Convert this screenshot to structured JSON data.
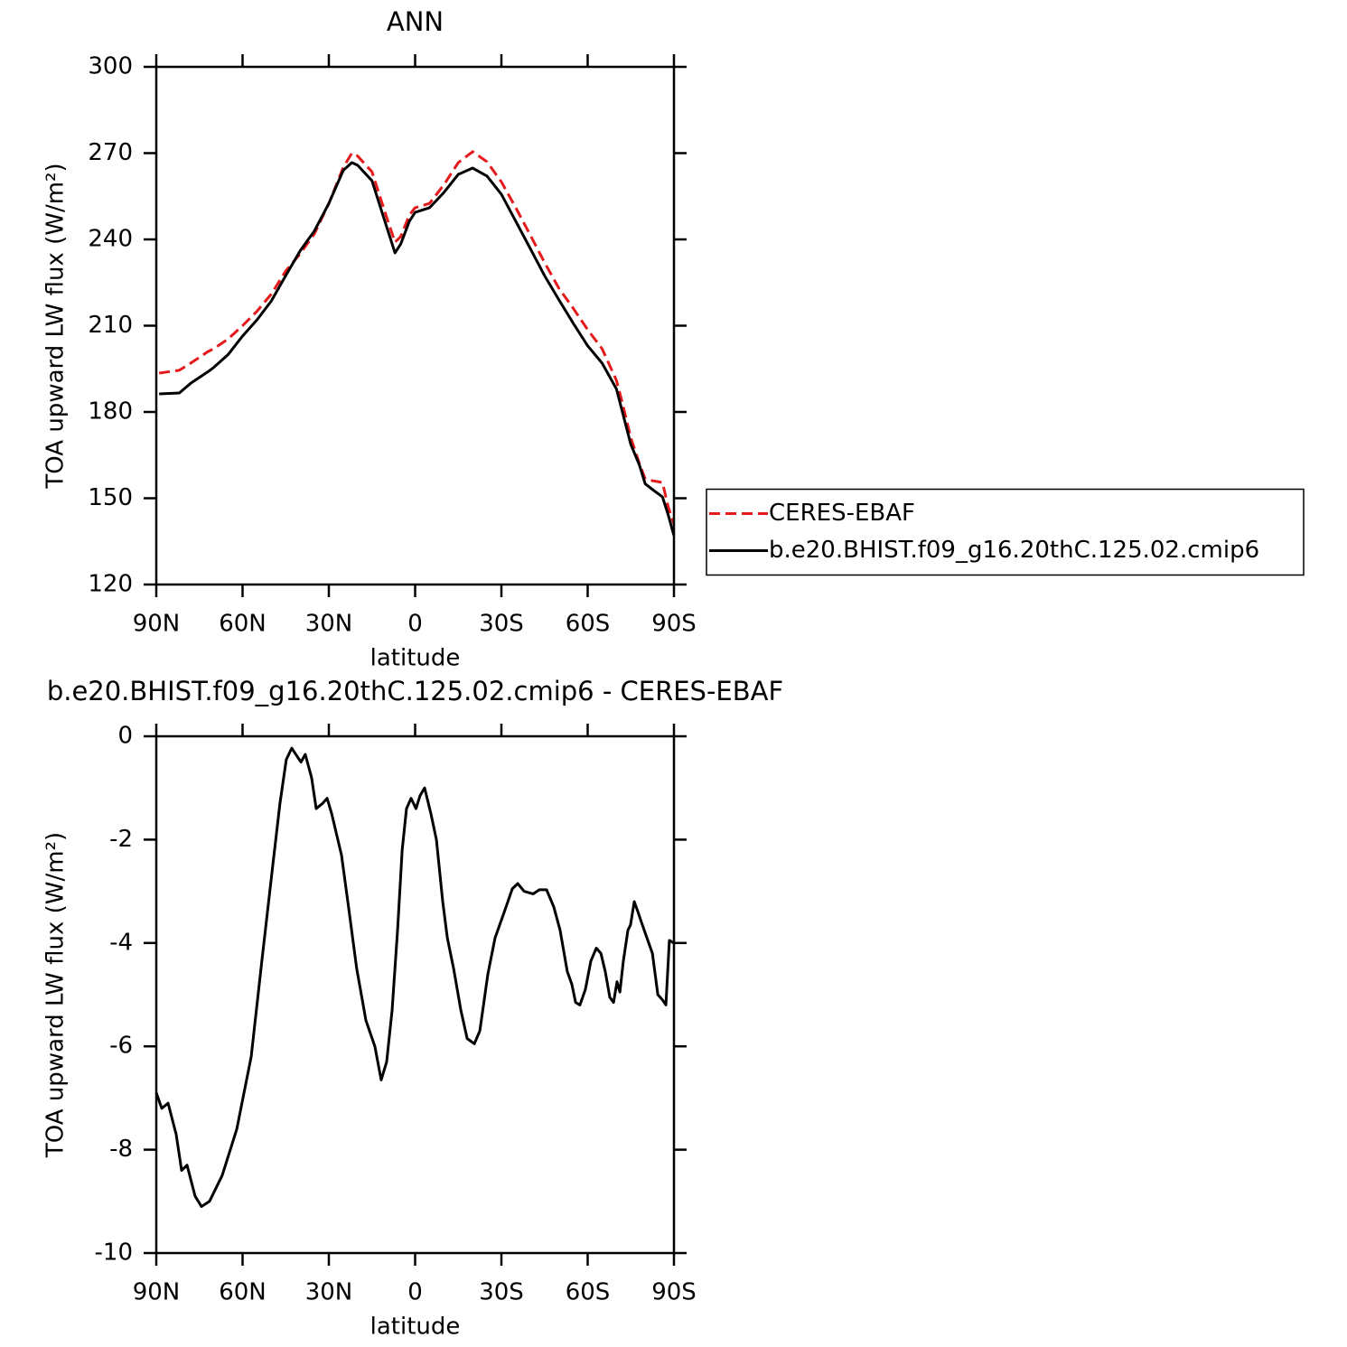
{
  "chart_data": [
    {
      "type": "line",
      "title": "ANN",
      "xlabel": "latitude",
      "ylabel": "TOA upward LW flux (W/m²)",
      "xlim": [
        90,
        -90
      ],
      "ylim": [
        120,
        300
      ],
      "xticks": [
        {
          "value": 90,
          "label": "90N"
        },
        {
          "value": 60,
          "label": "60N"
        },
        {
          "value": 30,
          "label": "30N"
        },
        0,
        {
          "value": -30,
          "label": "30S"
        },
        {
          "value": -60,
          "label": "60S"
        },
        {
          "value": -90,
          "label": "90S"
        }
      ],
      "yticks": [
        120,
        150,
        180,
        210,
        240,
        270,
        300
      ],
      "legend": "right",
      "x": [
        89,
        82,
        78,
        75,
        72,
        70,
        65,
        60,
        55,
        50,
        45,
        40,
        35,
        30,
        25,
        22,
        20,
        15,
        10,
        7,
        5,
        2,
        0,
        -5,
        -10,
        -15,
        -20,
        -25,
        -30,
        -35,
        -40,
        -45,
        -50,
        -55,
        -60,
        -65,
        -70,
        -72,
        -75,
        -78,
        -80,
        -83,
        -86,
        -88,
        -90
      ],
      "series": [
        {
          "name": "CERES-EBAF",
          "color": "#e41a1c",
          "dash": true,
          "values": [
            193.5,
            194.5,
            197,
            199,
            201,
            202,
            205.4,
            210,
            215,
            221,
            229,
            235,
            242,
            252.5,
            265,
            270,
            269,
            263.5,
            248,
            239,
            241,
            248.5,
            251,
            252.5,
            259,
            266.7,
            270.5,
            267,
            260,
            251,
            241.6,
            232,
            223,
            216,
            208.6,
            202,
            191,
            183.4,
            171,
            162,
            156.7,
            156,
            155.5,
            147,
            141
          ]
        },
        {
          "name": "b.e20.BHIST.f09_g16.20thC.125.02.cmip6",
          "color": "#000000",
          "dash": false,
          "values": [
            186.3,
            186.6,
            190,
            192,
            194,
            195.5,
            200,
            206.4,
            212,
            218.6,
            227.4,
            236,
            243,
            252.5,
            264,
            266.7,
            265.8,
            260.4,
            244.7,
            235.3,
            238.4,
            246.3,
            249.4,
            251,
            256.3,
            262.6,
            264.8,
            262,
            255.7,
            246.3,
            236.9,
            227.4,
            219,
            210.8,
            203,
            197,
            188,
            180.3,
            168.7,
            161.5,
            155,
            152.7,
            150.5,
            144.2,
            137
          ]
        }
      ]
    },
    {
      "type": "line",
      "title": "b.e20.BHIST.f09_g16.20thC.125.02.cmip6 - CERES-EBAF",
      "xlabel": "latitude",
      "ylabel": "TOA upward LW flux (W/m²)",
      "xlim": [
        90,
        -90
      ],
      "ylim": [
        -10,
        0
      ],
      "xticks": [
        {
          "value": 90,
          "label": "90N"
        },
        {
          "value": 60,
          "label": "60N"
        },
        {
          "value": 30,
          "label": "30N"
        },
        0,
        {
          "value": -30,
          "label": "30S"
        },
        {
          "value": -60,
          "label": "60S"
        },
        {
          "value": -90,
          "label": "90S"
        }
      ],
      "yticks": [
        -10,
        -8,
        -6,
        -4,
        -2,
        0
      ],
      "x": [
        90,
        88.1,
        85.9,
        83.1,
        81.2,
        79.3,
        76.5,
        74.3,
        71.5,
        67.1,
        62,
        57,
        53.2,
        49.5,
        47,
        44.8,
        42.9,
        39.7,
        38.2,
        36,
        34.4,
        32.2,
        30.6,
        29,
        25.6,
        23.4,
        20.3,
        17.1,
        14,
        11.8,
        9.9,
        8,
        6.1,
        4.5,
        3,
        1.4,
        -0.3,
        -1.7,
        -3.3,
        -5.5,
        -7.4,
        -9.6,
        -11.2,
        -13.4,
        -15.9,
        -18.1,
        -20.6,
        -22.5,
        -25.3,
        -27.8,
        -31,
        -33.8,
        -35.7,
        -37.9,
        -41,
        -43.2,
        -45.7,
        -48.2,
        -50.4,
        -52.9,
        -54.5,
        -55.8,
        -57.3,
        -59.2,
        -61.1,
        -63,
        -64.6,
        -66.1,
        -67.7,
        -69,
        -70.2,
        -71.2,
        -72.4,
        -74,
        -74.9,
        -76.2,
        -77.5,
        -78.7,
        -80.6,
        -82.5,
        -84.4,
        -86,
        -87.2,
        -88.4,
        -90
      ],
      "series": [
        {
          "color": "#000000",
          "values": [
            -6.9,
            -7.2,
            -7.1,
            -7.7,
            -8.4,
            -8.3,
            -8.9,
            -9.1,
            -9.0,
            -8.5,
            -7.6,
            -6.2,
            -4.3,
            -2.5,
            -1.3,
            -0.45,
            -0.23,
            -0.5,
            -0.35,
            -0.8,
            -1.4,
            -1.3,
            -1.2,
            -1.5,
            -2.3,
            -3.2,
            -4.5,
            -5.5,
            -6.0,
            -6.65,
            -6.3,
            -5.3,
            -3.75,
            -2.2,
            -1.4,
            -1.2,
            -1.4,
            -1.15,
            -1.0,
            -1.5,
            -2.0,
            -3.2,
            -3.9,
            -4.5,
            -5.3,
            -5.85,
            -5.95,
            -5.7,
            -4.6,
            -3.9,
            -3.4,
            -2.95,
            -2.85,
            -3.0,
            -3.05,
            -2.97,
            -2.97,
            -3.3,
            -3.75,
            -4.55,
            -4.8,
            -5.15,
            -5.2,
            -4.9,
            -4.35,
            -4.1,
            -4.2,
            -4.55,
            -5.05,
            -5.15,
            -4.75,
            -4.95,
            -4.35,
            -3.75,
            -3.65,
            -3.2,
            -3.4,
            -3.6,
            -3.9,
            -4.2,
            -5.0,
            -5.1,
            -5.2,
            -3.95,
            -4.0
          ]
        }
      ]
    }
  ]
}
